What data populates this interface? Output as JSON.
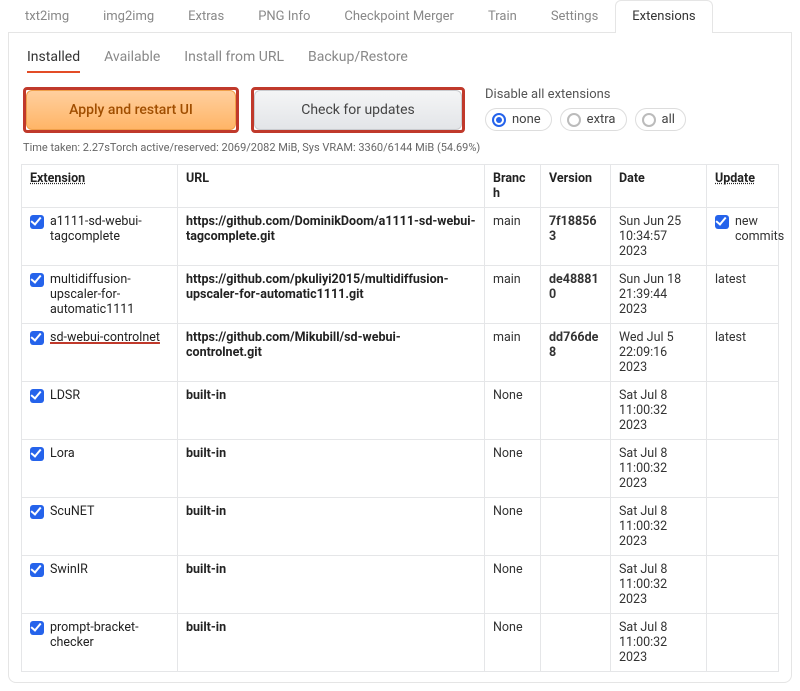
{
  "mainTabs": {
    "items": [
      "txt2img",
      "img2img",
      "Extras",
      "PNG Info",
      "Checkpoint Merger",
      "Train",
      "Settings",
      "Extensions"
    ],
    "activeIndex": 7
  },
  "subTabs": {
    "items": [
      "Installed",
      "Available",
      "Install from URL",
      "Backup/Restore"
    ],
    "activeIndex": 0
  },
  "buttons": {
    "apply": "Apply and restart UI",
    "check": "Check for updates",
    "highlightColor": "#c0392b"
  },
  "disable": {
    "title": "Disable all extensions",
    "options": [
      "none",
      "extra",
      "all"
    ],
    "selected": "none"
  },
  "status": "Time taken: 2.27sTorch active/reserved: 2069/2082 MiB, Sys VRAM: 3360/6144 MiB (54.69%)",
  "table": {
    "headers": {
      "extension": "Extension",
      "url": "URL",
      "branch": "Branch",
      "version": "Version",
      "date": "Date",
      "update": "Update"
    },
    "columnWidths": {
      "ext": 156,
      "branch": 56,
      "version": 70,
      "date": 96,
      "update": 72
    },
    "rows": [
      {
        "checked": true,
        "name": "a1111-sd-webui-tagcomplete",
        "nameUnderline": false,
        "url": "https://github.com/DominikDoom/a1111-sd-webui-tagcomplete.git",
        "urlBold": true,
        "branch": "main",
        "version": "7f188563",
        "date": "Sun Jun 25 10:34:57 2023",
        "update": "new commits",
        "updateHasCheck": true
      },
      {
        "checked": true,
        "name": "multidiffusion-upscaler-for-automatic1111",
        "nameUnderline": false,
        "url": "https://github.com/pkuliyi2015/multidiffusion-upscaler-for-automatic1111.git",
        "urlBold": true,
        "branch": "main",
        "version": "de488810",
        "date": "Sun Jun 18 21:39:44 2023",
        "update": "latest",
        "updateHasCheck": false
      },
      {
        "checked": true,
        "name": "sd-webui-controlnet",
        "nameUnderline": true,
        "url": "https://github.com/Mikubill/sd-webui-controlnet.git",
        "urlBold": true,
        "branch": "main",
        "version": "dd766de8",
        "date": "Wed Jul 5 22:09:16 2023",
        "update": "latest",
        "updateHasCheck": false
      },
      {
        "checked": true,
        "name": "LDSR",
        "nameUnderline": false,
        "url": "built-in",
        "urlBold": true,
        "branch": "None",
        "version": "",
        "date": "Sat Jul 8 11:00:32 2023",
        "update": "",
        "updateHasCheck": false
      },
      {
        "checked": true,
        "name": "Lora",
        "nameUnderline": false,
        "url": "built-in",
        "urlBold": true,
        "branch": "None",
        "version": "",
        "date": "Sat Jul 8 11:00:32 2023",
        "update": "",
        "updateHasCheck": false
      },
      {
        "checked": true,
        "name": "ScuNET",
        "nameUnderline": false,
        "url": "built-in",
        "urlBold": true,
        "branch": "None",
        "version": "",
        "date": "Sat Jul 8 11:00:32 2023",
        "update": "",
        "updateHasCheck": false
      },
      {
        "checked": true,
        "name": "SwinIR",
        "nameUnderline": false,
        "url": "built-in",
        "urlBold": true,
        "branch": "None",
        "version": "",
        "date": "Sat Jul 8 11:00:32 2023",
        "update": "",
        "updateHasCheck": false
      },
      {
        "checked": true,
        "name": "prompt-bracket-checker",
        "nameUnderline": false,
        "url": "built-in",
        "urlBold": true,
        "branch": "None",
        "version": "",
        "date": "Sat Jul 8 11:00:32 2023",
        "update": "",
        "updateHasCheck": false
      }
    ]
  },
  "colors": {
    "accent": "#2563eb",
    "tabUnderline": "#e34c26",
    "border": "#e5e5e5",
    "applyBgTop": "#ffcf9e",
    "applyBgBottom": "#ffb567",
    "checkBgTop": "#f4f5f6",
    "checkBgBottom": "#e3e5e8"
  }
}
